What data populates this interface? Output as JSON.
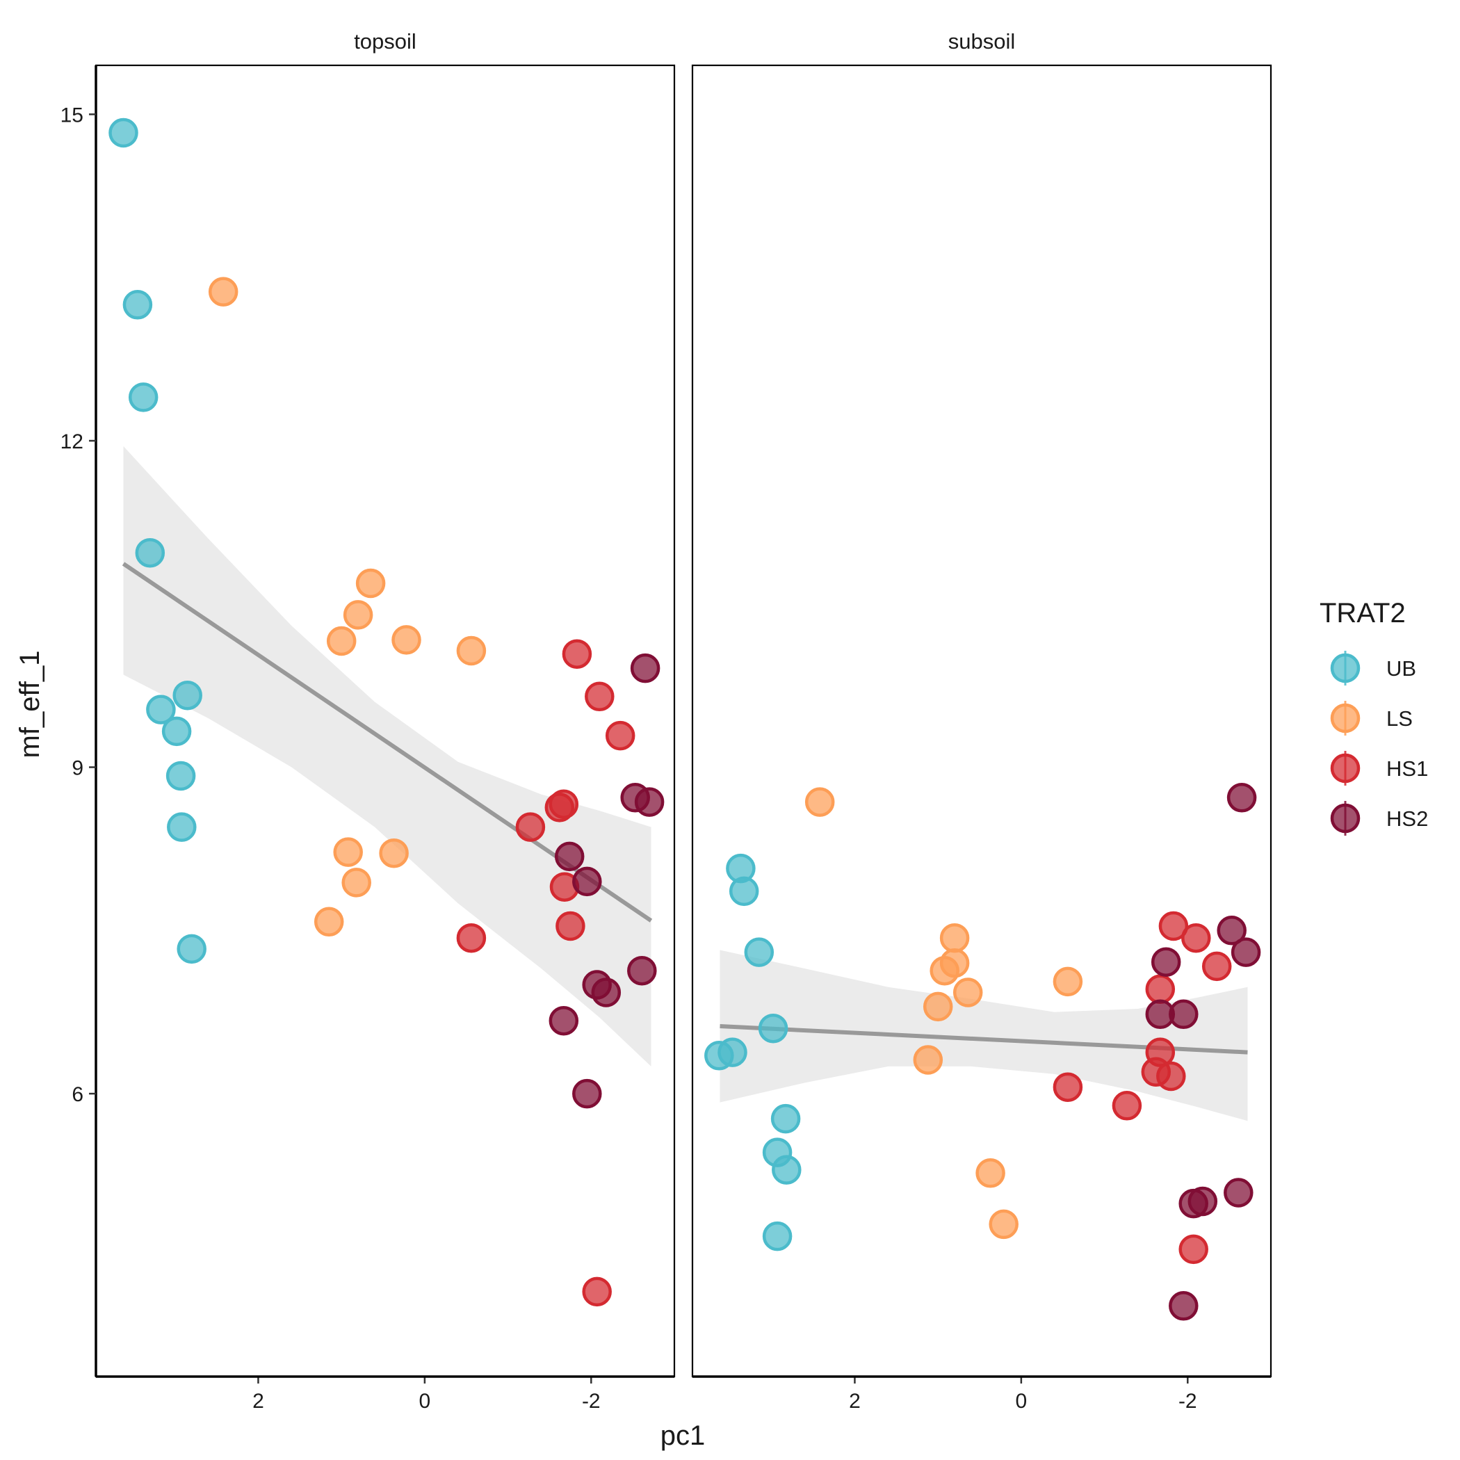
{
  "chart_data": {
    "type": "scatter",
    "xlabel": "pc1",
    "ylabel": "mf_eff_1",
    "x_reversed": true,
    "xlim": [
      3.95,
      -3.0
    ],
    "ylim": [
      3.4,
      15.45
    ],
    "x_ticks": [
      2,
      0,
      -2
    ],
    "x_tick_labels": [
      "2",
      "0",
      "-2"
    ],
    "y_ticks": [
      6,
      9,
      12,
      15
    ],
    "y_tick_labels": [
      "6",
      "9",
      "12",
      "15"
    ],
    "grid": false,
    "legend": {
      "title": "TRAT2",
      "position": "right",
      "items": [
        {
          "label": "UB",
          "color": "#4BBBCB"
        },
        {
          "label": "LS",
          "color": "#FD9E56"
        },
        {
          "label": "HS1",
          "color": "#D42A31"
        },
        {
          "label": "HS2",
          "color": "#800E35"
        }
      ]
    },
    "panels": [
      {
        "label": "topsoil",
        "fit": {
          "x": [
            3.62,
            -2.72
          ],
          "y": [
            10.87,
            7.59
          ]
        },
        "ci": {
          "x": [
            3.62,
            2.6,
            1.6,
            0.6,
            -0.4,
            -1.4,
            -2.1,
            -2.72
          ],
          "lower": [
            9.85,
            9.45,
            9.0,
            8.45,
            7.75,
            7.15,
            6.7,
            6.25
          ],
          "upper": [
            11.95,
            11.1,
            10.3,
            9.6,
            9.05,
            8.75,
            8.6,
            8.45
          ]
        },
        "series": [
          {
            "name": "UB",
            "points": [
              [
                3.62,
                14.83
              ],
              [
                3.45,
                13.25
              ],
              [
                3.38,
                12.4
              ],
              [
                3.3,
                10.97
              ],
              [
                3.17,
                9.53
              ],
              [
                2.98,
                9.33
              ],
              [
                2.85,
                9.66
              ],
              [
                2.93,
                8.92
              ],
              [
                2.92,
                8.45
              ],
              [
                2.8,
                7.33
              ]
            ]
          },
          {
            "name": "LS",
            "points": [
              [
                2.42,
                13.37
              ],
              [
                0.65,
                10.69
              ],
              [
                0.8,
                10.4
              ],
              [
                1.0,
                10.16
              ],
              [
                0.22,
                10.17
              ],
              [
                -0.56,
                10.07
              ],
              [
                0.92,
                8.22
              ],
              [
                0.82,
                7.94
              ],
              [
                0.37,
                8.21
              ],
              [
                1.15,
                7.58
              ]
            ]
          },
          {
            "name": "HS1",
            "points": [
              [
                -1.83,
                10.04
              ],
              [
                -2.1,
                9.65
              ],
              [
                -2.35,
                9.29
              ],
              [
                -1.62,
                8.63
              ],
              [
                -1.67,
                8.66
              ],
              [
                -1.27,
                8.45
              ],
              [
                -1.68,
                7.9
              ],
              [
                -1.75,
                7.54
              ],
              [
                -0.56,
                7.43
              ],
              [
                -2.07,
                4.18
              ]
            ]
          },
          {
            "name": "HS2",
            "points": [
              [
                -2.65,
                9.91
              ],
              [
                -2.53,
                8.72
              ],
              [
                -2.7,
                8.68
              ],
              [
                -1.74,
                8.18
              ],
              [
                -1.95,
                7.95
              ],
              [
                -2.07,
                7.0
              ],
              [
                -2.18,
                6.93
              ],
              [
                -2.61,
                7.13
              ],
              [
                -1.67,
                6.67
              ],
              [
                -1.95,
                6.0
              ]
            ]
          }
        ]
      },
      {
        "label": "subsoil",
        "fit": {
          "x": [
            3.62,
            -2.72
          ],
          "y": [
            6.62,
            6.38
          ]
        },
        "ci": {
          "x": [
            3.62,
            2.6,
            1.6,
            0.6,
            -0.4,
            -1.4,
            -2.1,
            -2.72
          ],
          "lower": [
            5.92,
            6.1,
            6.25,
            6.25,
            6.18,
            6.02,
            5.88,
            5.75
          ],
          "upper": [
            7.32,
            7.15,
            6.98,
            6.87,
            6.75,
            6.78,
            6.88,
            6.98
          ]
        },
        "series": [
          {
            "name": "UB",
            "points": [
              [
                3.63,
                6.35
              ],
              [
                3.47,
                6.38
              ],
              [
                3.37,
                8.07
              ],
              [
                3.33,
                7.86
              ],
              [
                3.15,
                7.3
              ],
              [
                2.98,
                6.6
              ],
              [
                2.83,
                5.77
              ],
              [
                2.93,
                5.46
              ],
              [
                2.82,
                5.3
              ],
              [
                2.93,
                4.69
              ]
            ]
          },
          {
            "name": "LS",
            "points": [
              [
                2.42,
                8.68
              ],
              [
                0.8,
                7.43
              ],
              [
                0.8,
                7.2
              ],
              [
                0.92,
                7.13
              ],
              [
                0.64,
                6.93
              ],
              [
                1.0,
                6.8
              ],
              [
                1.12,
                6.31
              ],
              [
                -0.56,
                7.03
              ],
              [
                0.37,
                5.27
              ],
              [
                0.21,
                4.8
              ]
            ]
          },
          {
            "name": "HS1",
            "points": [
              [
                -1.83,
                7.54
              ],
              [
                -2.1,
                7.43
              ],
              [
                -2.35,
                7.17
              ],
              [
                -1.67,
                6.96
              ],
              [
                -1.67,
                6.38
              ],
              [
                -1.62,
                6.2
              ],
              [
                -1.8,
                6.16
              ],
              [
                -0.56,
                6.06
              ],
              [
                -1.27,
                5.89
              ],
              [
                -2.07,
                4.57
              ]
            ]
          },
          {
            "name": "HS2",
            "points": [
              [
                -2.65,
                8.72
              ],
              [
                -2.53,
                7.5
              ],
              [
                -2.7,
                7.3
              ],
              [
                -1.74,
                7.21
              ],
              [
                -1.67,
                6.73
              ],
              [
                -1.95,
                6.73
              ],
              [
                -2.07,
                4.99
              ],
              [
                -2.18,
                5.01
              ],
              [
                -2.61,
                5.09
              ],
              [
                -1.95,
                4.05
              ]
            ]
          }
        ]
      }
    ]
  }
}
